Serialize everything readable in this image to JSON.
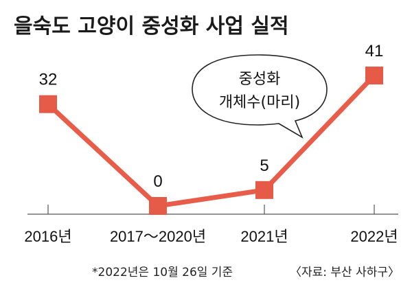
{
  "title": "을숙도 고양이 중성화 사업 실적",
  "callout": {
    "line1": "중성화",
    "line2": "개체수(마리)"
  },
  "footnote": "*2022년은 10월 26일 기준",
  "source": "〈자료: 부산 사하구〉",
  "colors": {
    "series": "#e85c4a",
    "marker": "#e65a48",
    "axis": "#555555",
    "text": "#111111"
  },
  "chart_data": {
    "type": "line",
    "title": "을숙도 고양이 중성화 사업 실적",
    "categories": [
      "2016년",
      "2017～2020년",
      "2021년",
      "2022년"
    ],
    "series": [
      {
        "name": "중성화 개체수(마리)",
        "values": [
          32,
          0,
          5,
          41
        ]
      }
    ],
    "data_labels": [
      "32",
      "0",
      "5",
      "41"
    ],
    "ylim": [
      0,
      41
    ],
    "grid": false,
    "legend": "none"
  }
}
